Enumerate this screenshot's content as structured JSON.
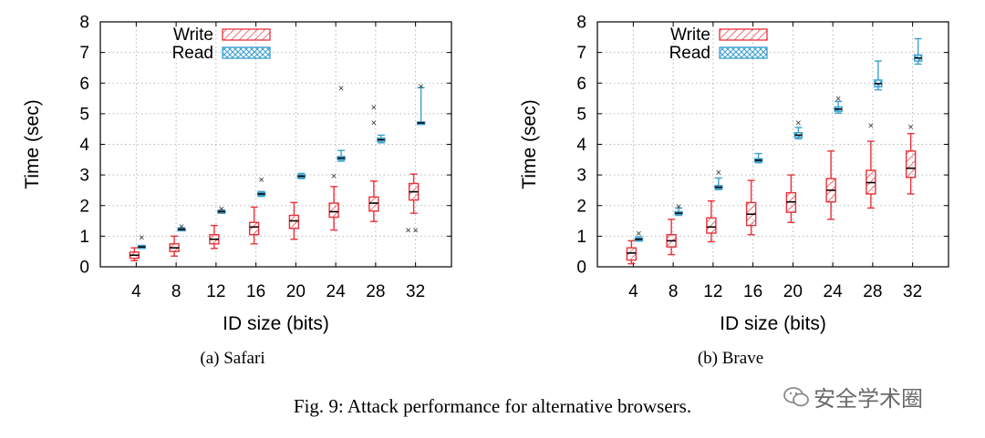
{
  "figure": {
    "caption": "Fig. 9: Attack performance for alternative browsers.",
    "watermark": "安全学术圈"
  },
  "colors": {
    "write": "#e8313a",
    "read": "#3a9fce",
    "grid": "#b8b8b8"
  },
  "chart_data": [
    {
      "type": "box",
      "subcaption": "(a) Safari",
      "xlabel": "ID size (bits)",
      "ylabel": "Time (sec)",
      "ylim": [
        0,
        8
      ],
      "yticks": [
        0,
        1,
        2,
        3,
        4,
        5,
        6,
        7,
        8
      ],
      "categories": [
        "4",
        "8",
        "12",
        "16",
        "20",
        "24",
        "28",
        "32"
      ],
      "grid": true,
      "legend_position": "top-left",
      "series": [
        {
          "name": "Write",
          "boxes": [
            {
              "min": 0.2,
              "q1": 0.28,
              "median": 0.38,
              "q3": 0.48,
              "max": 0.62,
              "outliers": []
            },
            {
              "min": 0.35,
              "q1": 0.5,
              "median": 0.62,
              "q3": 0.75,
              "max": 1.0,
              "outliers": []
            },
            {
              "min": 0.6,
              "q1": 0.75,
              "median": 0.9,
              "q3": 1.05,
              "max": 1.35,
              "outliers": []
            },
            {
              "min": 0.75,
              "q1": 1.05,
              "median": 1.3,
              "q3": 1.45,
              "max": 1.95,
              "outliers": []
            },
            {
              "min": 0.9,
              "q1": 1.25,
              "median": 1.5,
              "q3": 1.68,
              "max": 2.1,
              "outliers": []
            },
            {
              "min": 1.2,
              "q1": 1.62,
              "median": 1.8,
              "q3": 2.08,
              "max": 2.62,
              "outliers": [
                2.97
              ]
            },
            {
              "min": 1.48,
              "q1": 1.82,
              "median": 2.08,
              "q3": 2.28,
              "max": 2.8,
              "outliers": [
                4.72,
                5.22
              ]
            },
            {
              "min": 1.75,
              "q1": 2.18,
              "median": 2.45,
              "q3": 2.72,
              "max": 3.03,
              "outliers": [
                1.2
              ]
            }
          ]
        },
        {
          "name": "Read",
          "boxes": [
            {
              "min": 0.6,
              "q1": 0.62,
              "median": 0.65,
              "q3": 0.68,
              "max": 0.7,
              "outliers": [
                0.97
              ]
            },
            {
              "min": 1.18,
              "q1": 1.2,
              "median": 1.22,
              "q3": 1.25,
              "max": 1.28,
              "outliers": [
                1.32
              ]
            },
            {
              "min": 1.75,
              "q1": 1.78,
              "median": 1.8,
              "q3": 1.83,
              "max": 1.86,
              "outliers": [
                1.9
              ]
            },
            {
              "min": 2.3,
              "q1": 2.34,
              "median": 2.38,
              "q3": 2.42,
              "max": 2.46,
              "outliers": [
                2.85
              ]
            },
            {
              "min": 2.88,
              "q1": 2.92,
              "median": 2.96,
              "q3": 3.0,
              "max": 3.05,
              "outliers": []
            },
            {
              "min": 3.45,
              "q1": 3.5,
              "median": 3.55,
              "q3": 3.6,
              "max": 3.8,
              "outliers": [
                5.85
              ]
            },
            {
              "min": 4.05,
              "q1": 4.1,
              "median": 4.15,
              "q3": 4.2,
              "max": 4.3,
              "outliers": []
            },
            {
              "min": 4.65,
              "q1": 4.68,
              "median": 4.7,
              "q3": 4.73,
              "max": 5.85,
              "outliers": [
                1.2,
                5.9
              ]
            }
          ]
        }
      ]
    },
    {
      "type": "box",
      "subcaption": "(b) Brave",
      "xlabel": "ID size (bits)",
      "ylabel": "Time (sec)",
      "ylim": [
        0,
        8
      ],
      "yticks": [
        0,
        1,
        2,
        3,
        4,
        5,
        6,
        7,
        8
      ],
      "categories": [
        "4",
        "8",
        "12",
        "16",
        "20",
        "24",
        "28",
        "32"
      ],
      "grid": true,
      "legend_position": "top-left",
      "series": [
        {
          "name": "Write",
          "boxes": [
            {
              "min": 0.1,
              "q1": 0.22,
              "median": 0.45,
              "q3": 0.62,
              "max": 0.85,
              "outliers": []
            },
            {
              "min": 0.4,
              "q1": 0.65,
              "median": 0.85,
              "q3": 1.05,
              "max": 1.55,
              "outliers": []
            },
            {
              "min": 0.82,
              "q1": 1.1,
              "median": 1.3,
              "q3": 1.6,
              "max": 2.15,
              "outliers": []
            },
            {
              "min": 1.05,
              "q1": 1.35,
              "median": 1.72,
              "q3": 2.1,
              "max": 2.82,
              "outliers": []
            },
            {
              "min": 1.45,
              "q1": 1.78,
              "median": 2.12,
              "q3": 2.42,
              "max": 3.0,
              "outliers": []
            },
            {
              "min": 1.55,
              "q1": 2.12,
              "median": 2.5,
              "q3": 2.88,
              "max": 3.78,
              "outliers": []
            },
            {
              "min": 1.92,
              "q1": 2.38,
              "median": 2.75,
              "q3": 3.15,
              "max": 4.1,
              "outliers": [
                4.62
              ]
            },
            {
              "min": 2.38,
              "q1": 2.92,
              "median": 3.22,
              "q3": 3.78,
              "max": 4.35,
              "outliers": [
                4.58
              ]
            }
          ]
        },
        {
          "name": "Read",
          "boxes": [
            {
              "min": 0.84,
              "q1": 0.87,
              "median": 0.9,
              "q3": 0.93,
              "max": 0.98,
              "outliers": [
                1.1
              ]
            },
            {
              "min": 1.68,
              "q1": 1.72,
              "median": 1.75,
              "q3": 1.8,
              "max": 1.92,
              "outliers": [
                1.98
              ]
            },
            {
              "min": 2.52,
              "q1": 2.56,
              "median": 2.6,
              "q3": 2.65,
              "max": 2.9,
              "outliers": [
                3.1
              ]
            },
            {
              "min": 3.4,
              "q1": 3.44,
              "median": 3.48,
              "q3": 3.53,
              "max": 3.7,
              "outliers": []
            },
            {
              "min": 4.18,
              "q1": 4.23,
              "median": 4.3,
              "q3": 4.38,
              "max": 4.55,
              "outliers": [
                4.72
              ]
            },
            {
              "min": 5.02,
              "q1": 5.08,
              "median": 5.15,
              "q3": 5.22,
              "max": 5.4,
              "outliers": [
                5.5
              ]
            },
            {
              "min": 5.78,
              "q1": 5.88,
              "median": 5.98,
              "q3": 6.1,
              "max": 6.72,
              "outliers": []
            },
            {
              "min": 6.62,
              "q1": 6.72,
              "median": 6.82,
              "q3": 6.92,
              "max": 7.45,
              "outliers": []
            }
          ]
        }
      ]
    }
  ]
}
